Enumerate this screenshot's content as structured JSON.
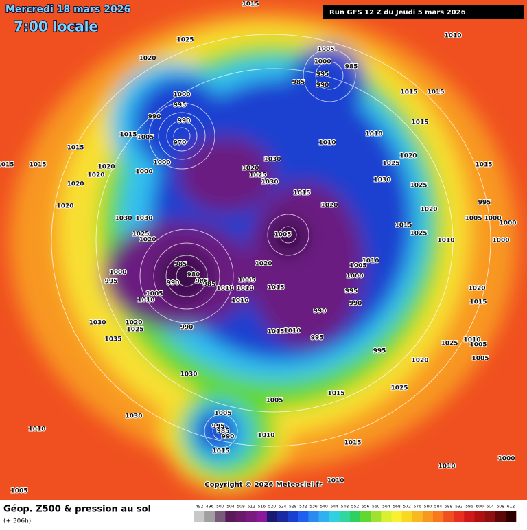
{
  "header": {
    "date": "Mercredi 18 mars 2026",
    "time": "7:00 locale",
    "run": "Run GFS 12 Z du Jeudi 5 mars 2026"
  },
  "copyright": "Copyright © 2026 Meteociel.fr",
  "footer": {
    "title": "Géop. Z500 & pression au sol",
    "lead_time": "(+ 306h)"
  },
  "colorbar": {
    "values": [
      492,
      496,
      500,
      504,
      508,
      512,
      516,
      520,
      524,
      528,
      532,
      536,
      540,
      544,
      548,
      552,
      556,
      560,
      564,
      568,
      572,
      576,
      580,
      584,
      588,
      592,
      596,
      600,
      604,
      608,
      612
    ],
    "colors": [
      "#c8c8c8",
      "#a0a0a0",
      "#7a5a7a",
      "#5a1a5a",
      "#6a1a6a",
      "#7a1a80",
      "#8a1a9a",
      "#1a1a70",
      "#1a2aa0",
      "#1a40d0",
      "#2060f0",
      "#2a8af0",
      "#30b0f0",
      "#30d0e0",
      "#30d8a0",
      "#30d060",
      "#60d830",
      "#a0e030",
      "#d8f030",
      "#f8f030",
      "#f8d820",
      "#f8b820",
      "#f89820",
      "#f87820",
      "#f05020",
      "#e83020",
      "#d01818",
      "#b01010",
      "#901010",
      "#600808",
      "#300000"
    ]
  },
  "isobar_labels": [
    1015,
    1010,
    1025,
    1005,
    1000,
    985,
    995,
    985,
    990,
    1020,
    1000,
    995,
    990,
    990,
    970,
    1015,
    1005,
    1015,
    1015,
    1015,
    1010,
    1030,
    1010,
    1000,
    1015,
    1015,
    1015,
    1020,
    1020,
    1000,
    1020,
    1020,
    1025,
    1030,
    1025,
    1020,
    1030,
    1015,
    1025,
    1015,
    1020,
    995,
    1020,
    1005,
    1000,
    1000,
    1020,
    1030,
    1030,
    1015,
    1025,
    1010,
    1000,
    1025,
    1020,
    1005,
    985,
    980,
    985,
    1000,
    995,
    990,
    985,
    1010,
    1005,
    1000,
    1015,
    1005,
    1010,
    1010,
    1005,
    1010,
    1010,
    995,
    990,
    1020,
    1015,
    1030,
    1020,
    1025,
    990,
    990,
    1015,
    1010,
    995,
    1035,
    1030,
    995,
    1025,
    1010,
    1005,
    1005,
    1020,
    1025,
    1015,
    1005,
    1010,
    1030,
    1005,
    995,
    985,
    990,
    1010,
    1015,
    1015,
    1000,
    1010,
    1005,
    1010,
    1020
  ]
}
